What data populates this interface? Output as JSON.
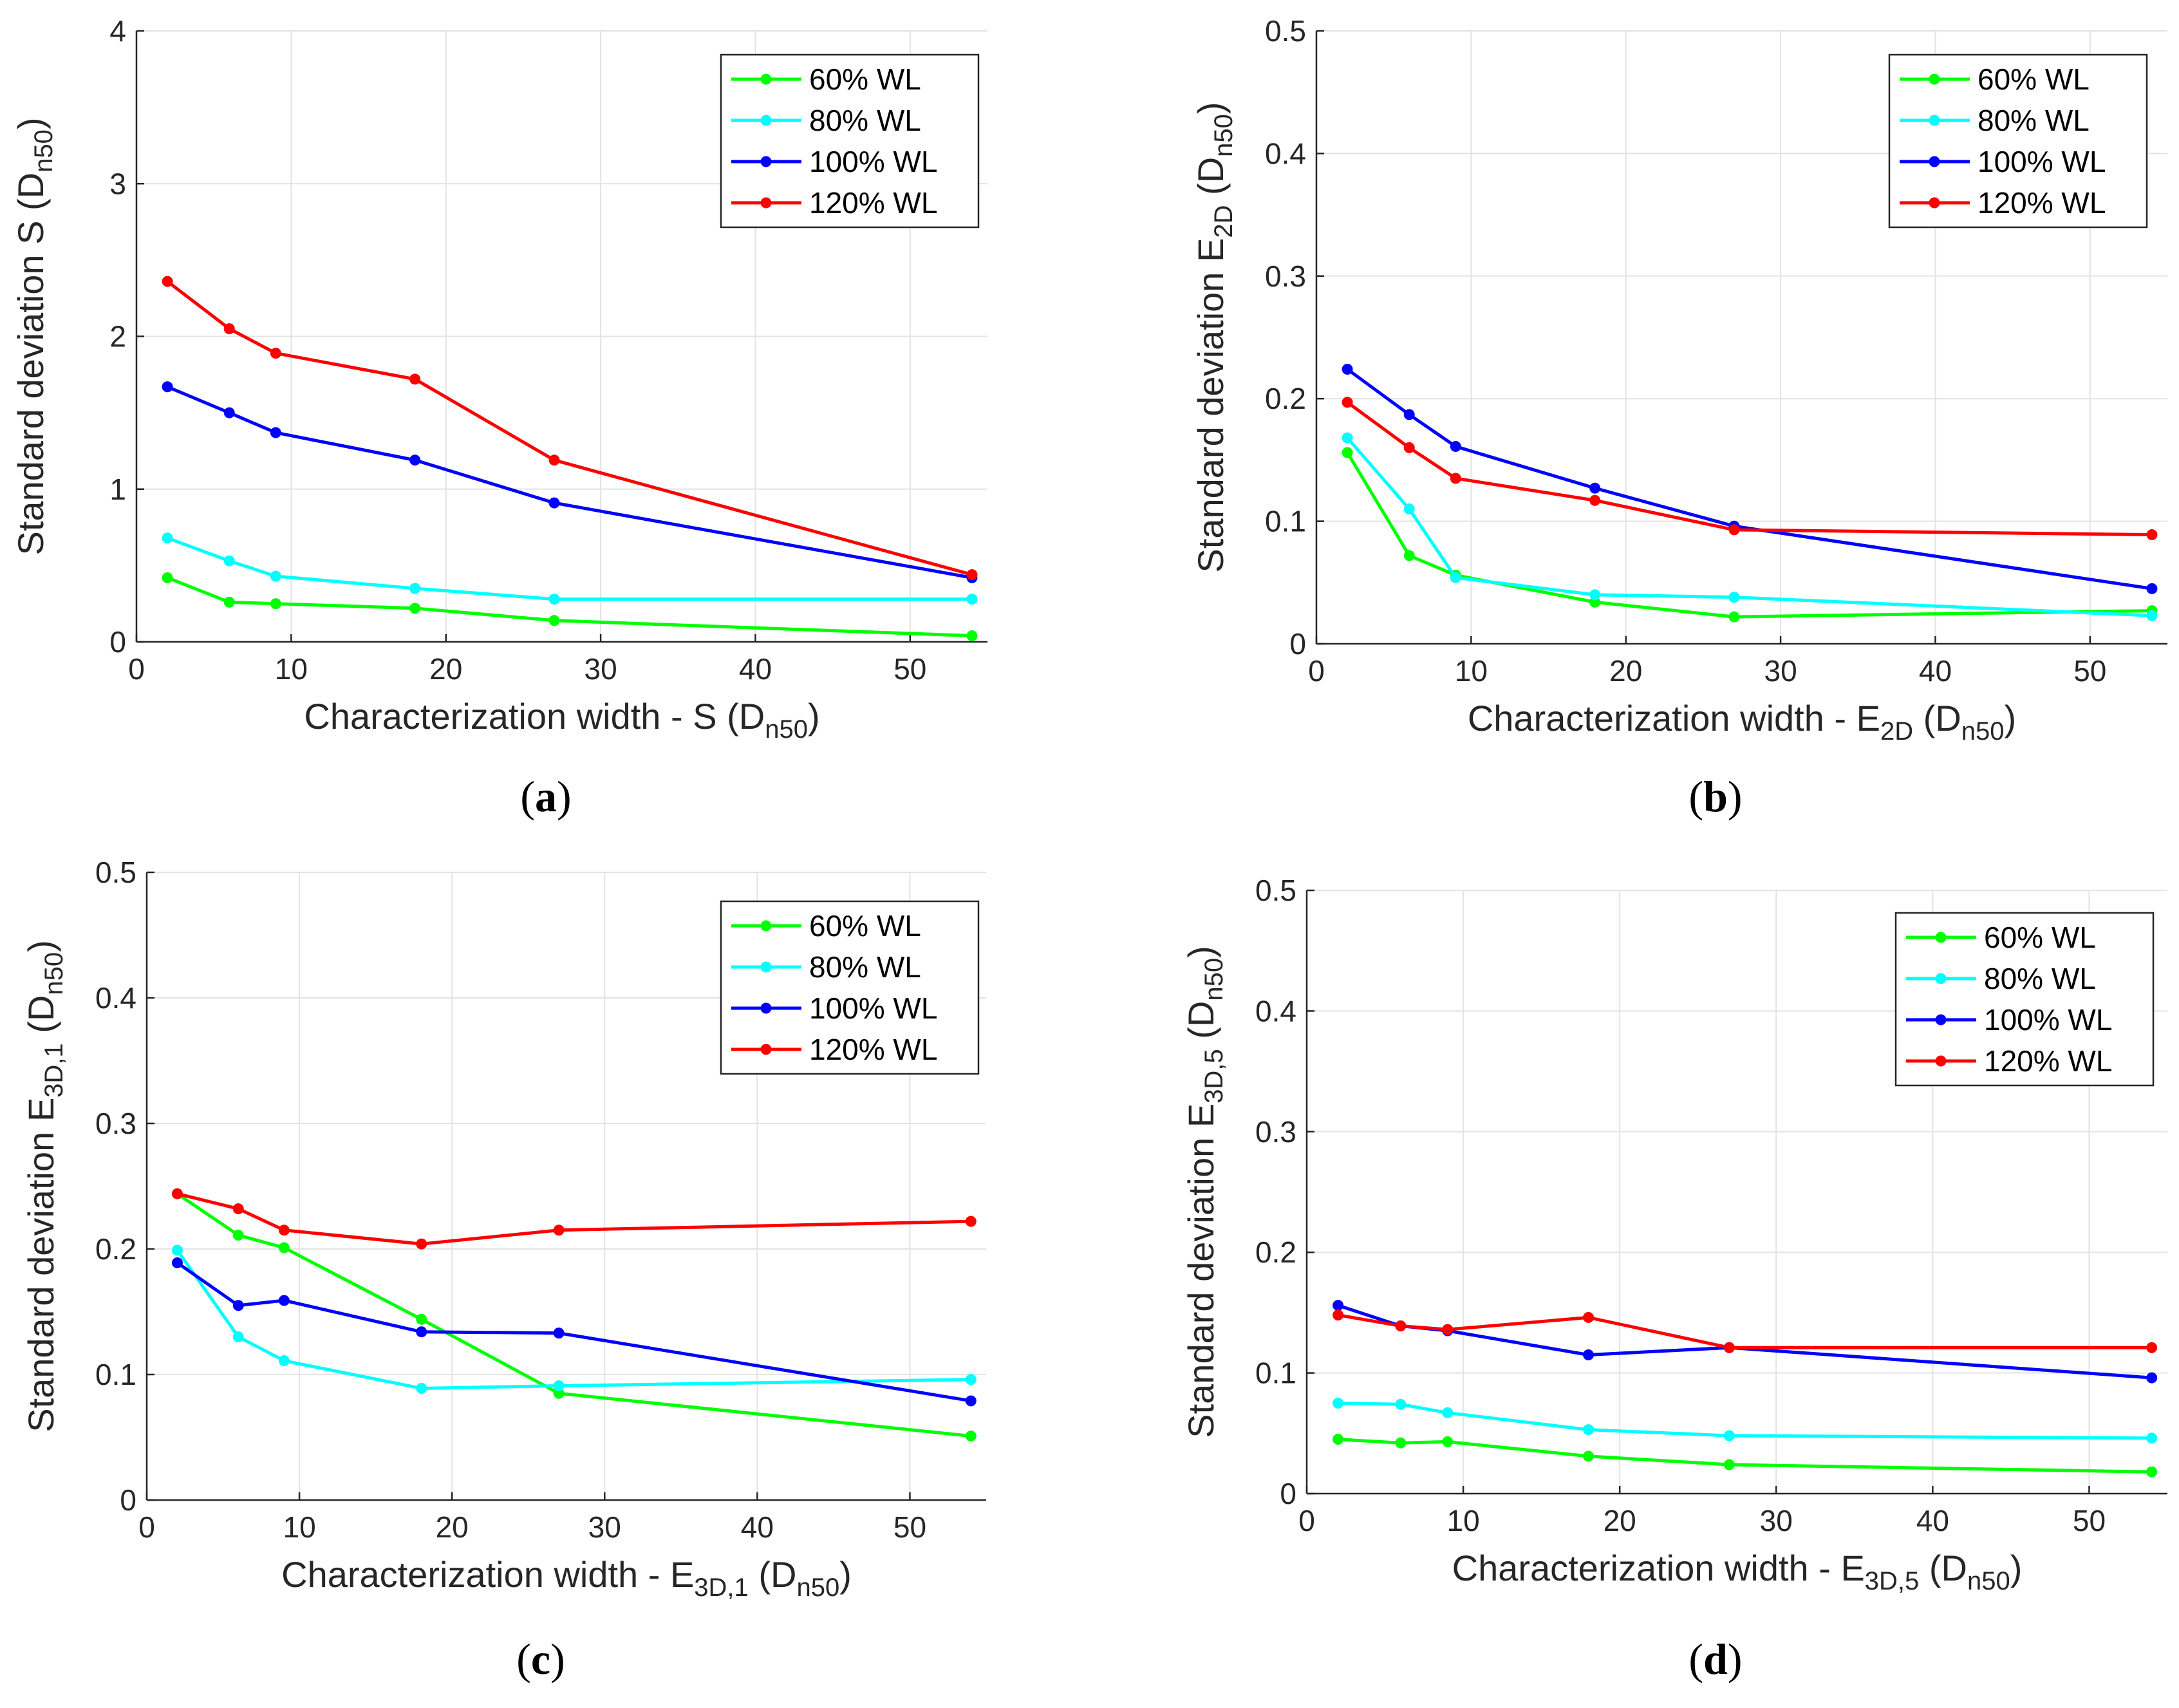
{
  "chart_data": [
    {
      "type": "line",
      "caption": "(a)",
      "xlabel": {
        "pre": "Characterization width - S (D",
        "sub": "n50",
        "post": ")"
      },
      "ylabel": {
        "pre": "Standard deviation S (D",
        "sub": "n50",
        "post": ")"
      },
      "xlim": [
        0,
        55
      ],
      "ylim": [
        0,
        4
      ],
      "xticks": [
        0,
        10,
        20,
        30,
        40,
        50
      ],
      "yticks": [
        0,
        1,
        2,
        3,
        4
      ],
      "grid": true,
      "legend_position": "top-right",
      "x": [
        2,
        6,
        9,
        18,
        27,
        54
      ],
      "series": [
        {
          "name": "60% WL",
          "color": "#00ff00",
          "values": [
            0.42,
            0.26,
            0.25,
            0.22,
            0.14,
            0.04
          ]
        },
        {
          "name": "80% WL",
          "color": "#00ffff",
          "values": [
            0.68,
            0.53,
            0.43,
            0.35,
            0.28,
            0.28
          ]
        },
        {
          "name": "100% WL",
          "color": "#0000ff",
          "values": [
            1.67,
            1.5,
            1.37,
            1.19,
            0.91,
            0.42
          ]
        },
        {
          "name": "120% WL",
          "color": "#ff0000",
          "values": [
            2.36,
            2.05,
            1.89,
            1.72,
            1.19,
            0.44
          ]
        }
      ]
    },
    {
      "type": "line",
      "caption": "(b)",
      "xlabel": {
        "pre": "Characterization width - E",
        "sub": "2D",
        "post": " (D",
        "sub2": "n50",
        "post2": ")"
      },
      "ylabel": {
        "pre": "Standard deviation E",
        "sub": "2D",
        "post": " (D",
        "sub2": "n50",
        "post2": ")"
      },
      "xlim": [
        0,
        55
      ],
      "ylim": [
        0,
        0.5
      ],
      "xticks": [
        0,
        10,
        20,
        30,
        40,
        50
      ],
      "yticks": [
        0,
        0.1,
        0.2,
        0.3,
        0.4,
        0.5
      ],
      "grid": true,
      "legend_position": "top-right",
      "x": [
        2,
        6,
        9,
        18,
        27,
        54
      ],
      "series": [
        {
          "name": "60% WL",
          "color": "#00ff00",
          "values": [
            0.156,
            0.072,
            0.056,
            0.034,
            0.022,
            0.027
          ]
        },
        {
          "name": "80% WL",
          "color": "#00ffff",
          "values": [
            0.168,
            0.11,
            0.054,
            0.04,
            0.038,
            0.023
          ]
        },
        {
          "name": "100% WL",
          "color": "#0000ff",
          "values": [
            0.224,
            0.187,
            0.161,
            0.127,
            0.096,
            0.045
          ]
        },
        {
          "name": "120% WL",
          "color": "#ff0000",
          "values": [
            0.197,
            0.16,
            0.135,
            0.117,
            0.093,
            0.089
          ]
        }
      ]
    },
    {
      "type": "line",
      "caption": "(c)",
      "xlabel": {
        "pre": "Characterization width - E",
        "sub": "3D,1",
        "post": " (D",
        "sub2": "n50",
        "post2": ")"
      },
      "ylabel": {
        "pre": "Standard deviation E",
        "sub": "3D,1",
        "post": " (D",
        "sub2": "n50",
        "post2": ")"
      },
      "xlim": [
        0,
        55
      ],
      "ylim": [
        0,
        0.5
      ],
      "xticks": [
        0,
        10,
        20,
        30,
        40,
        50
      ],
      "yticks": [
        0,
        0.1,
        0.2,
        0.3,
        0.4,
        0.5
      ],
      "grid": true,
      "legend_position": "top-right",
      "x": [
        2,
        6,
        9,
        18,
        27,
        54
      ],
      "series": [
        {
          "name": "60% WL",
          "color": "#00ff00",
          "values": [
            0.244,
            0.211,
            0.201,
            0.144,
            0.085,
            0.051
          ]
        },
        {
          "name": "80% WL",
          "color": "#00ffff",
          "values": [
            0.199,
            0.13,
            0.111,
            0.089,
            0.091,
            0.096
          ]
        },
        {
          "name": "100% WL",
          "color": "#0000ff",
          "values": [
            0.189,
            0.155,
            0.159,
            0.134,
            0.133,
            0.079
          ]
        },
        {
          "name": "120% WL",
          "color": "#ff0000",
          "values": [
            0.244,
            0.232,
            0.215,
            0.204,
            0.215,
            0.222
          ]
        }
      ]
    },
    {
      "type": "line",
      "caption": "(d)",
      "xlabel": {
        "pre": "Characterization width - E",
        "sub": "3D,5",
        "post": " (D",
        "sub2": "n50",
        "post2": ")"
      },
      "ylabel": {
        "pre": "Standard deviation E",
        "sub": "3D,5",
        "post": " (D",
        "sub2": "n50",
        "post2": ")"
      },
      "xlim": [
        0,
        55
      ],
      "ylim": [
        0,
        0.5
      ],
      "xticks": [
        0,
        10,
        20,
        30,
        40,
        50
      ],
      "yticks": [
        0,
        0.1,
        0.2,
        0.3,
        0.4,
        0.5
      ],
      "grid": true,
      "legend_position": "top-right",
      "x": [
        2,
        6,
        9,
        18,
        27,
        54
      ],
      "series": [
        {
          "name": "60% WL",
          "color": "#00ff00",
          "values": [
            0.045,
            0.042,
            0.043,
            0.031,
            0.024,
            0.018
          ]
        },
        {
          "name": "80% WL",
          "color": "#00ffff",
          "values": [
            0.075,
            0.074,
            0.067,
            0.053,
            0.048,
            0.046
          ]
        },
        {
          "name": "100% WL",
          "color": "#0000ff",
          "values": [
            0.156,
            0.139,
            0.135,
            0.115,
            0.121,
            0.096
          ]
        },
        {
          "name": "120% WL",
          "color": "#ff0000",
          "values": [
            0.148,
            0.139,
            0.136,
            0.146,
            0.121,
            0.121
          ]
        }
      ]
    }
  ]
}
